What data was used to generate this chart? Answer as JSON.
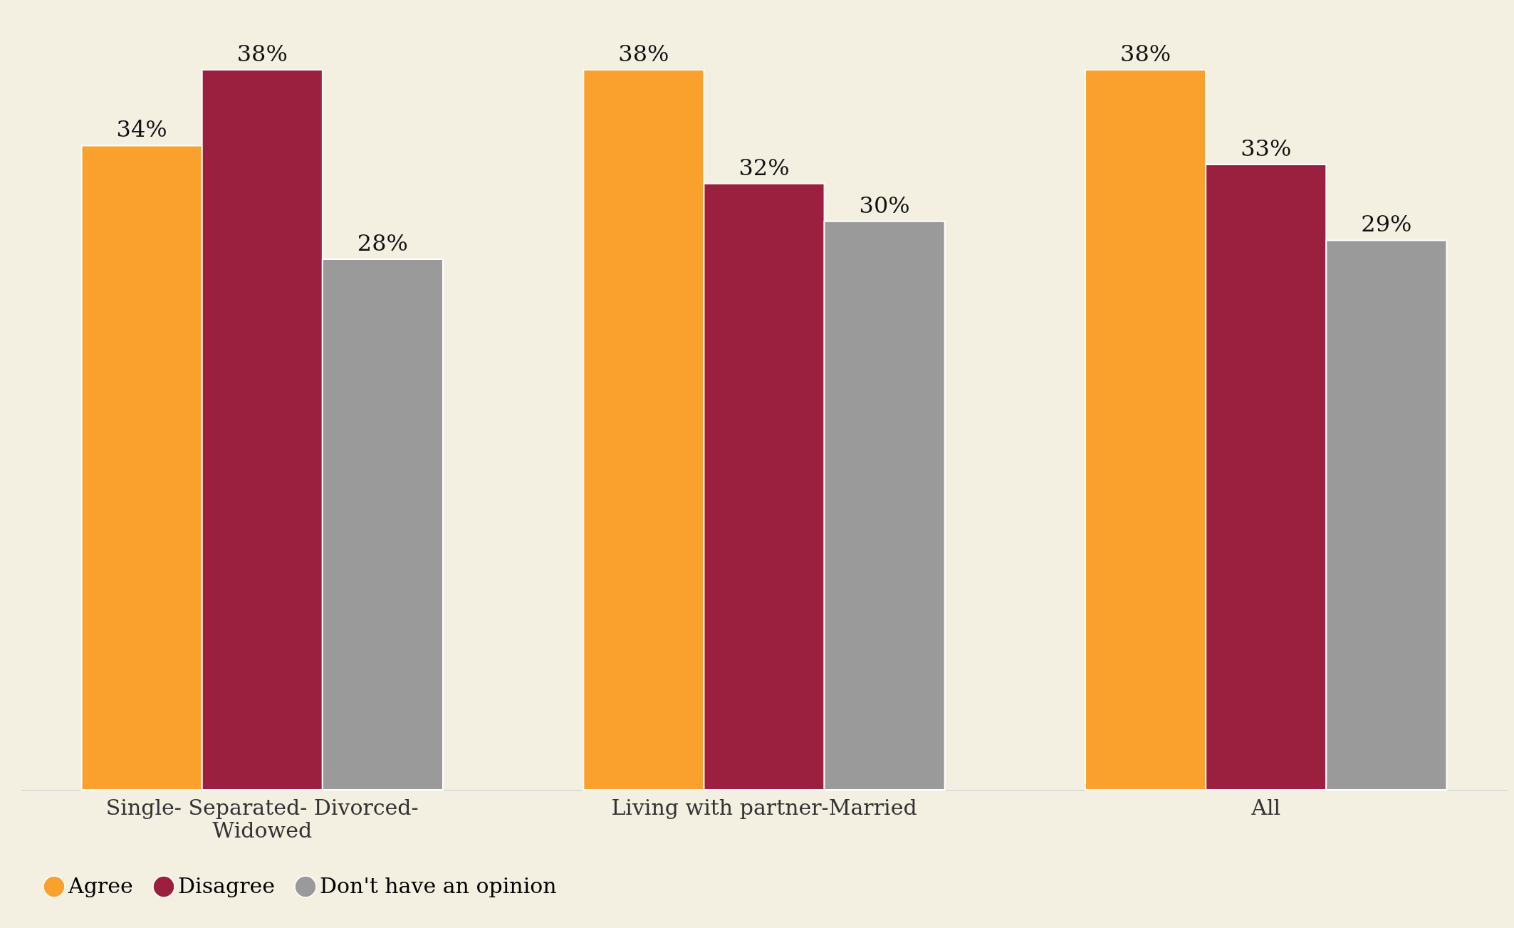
{
  "chart_data": {
    "type": "bar",
    "categories": [
      "Single- Separated- Divorced- Widowed",
      "Living with partner-Married",
      "All"
    ],
    "series": [
      {
        "name": "Agree",
        "color": "#f9a12c",
        "values": [
          34,
          38,
          38
        ],
        "value_labels": [
          "34%",
          "38%",
          "38%"
        ]
      },
      {
        "name": "Disagree",
        "color": "#9b2040",
        "values": [
          38,
          32,
          33
        ],
        "value_labels": [
          "38%",
          "32%",
          "33%"
        ]
      },
      {
        "name": "Don't have an opinion",
        "color": "#9a9a9a",
        "values": [
          28,
          30,
          29
        ],
        "value_labels": [
          "28%",
          "30%",
          "29%"
        ]
      }
    ],
    "legend": "bottom",
    "grid": false
  }
}
